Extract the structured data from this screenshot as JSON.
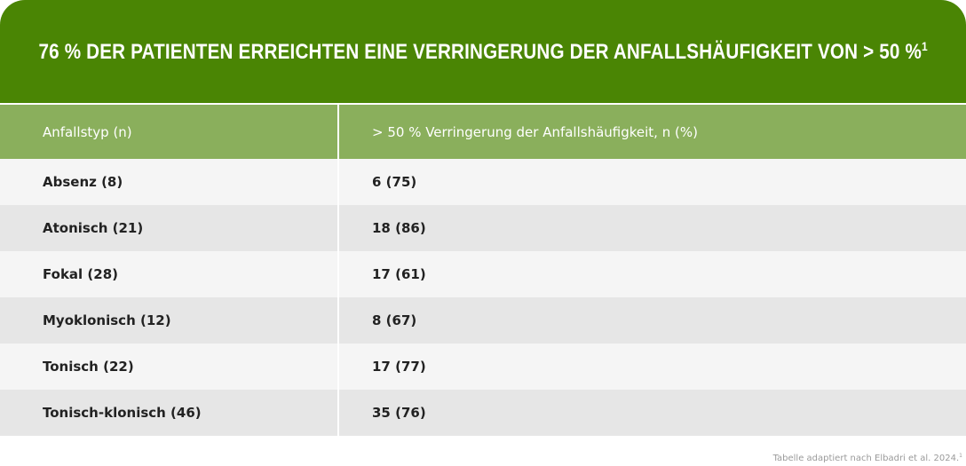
{
  "title": {
    "text": "76 % DER PATIENTEN ERREICHTEN EINE VERRINGERUNG DER ANFALLSHÄUFIGKEIT VON > 50 %",
    "footnote_mark": "1"
  },
  "table": {
    "headers": [
      "Anfallstyp (n)",
      "> 50 % Verringerung der Anfallshäufigkeit, n (%)"
    ],
    "rows": [
      [
        "Absenz (8)",
        "6 (75)"
      ],
      [
        "Atonisch (21)",
        "18 (86)"
      ],
      [
        "Fokal (28)",
        "17 (61)"
      ],
      [
        "Myoklonisch (12)",
        "8 (67)"
      ],
      [
        "Tonisch (22)",
        "17 (77)"
      ],
      [
        "Tonisch-klonisch (46)",
        "35 (76)"
      ]
    ]
  },
  "source": {
    "text": "Tabelle adaptiert nach Elbadri et al. 2024.",
    "footnote_mark": "1"
  },
  "colors": {
    "title_bg": "#4a8504",
    "header_bg": "#8aaf5c",
    "row_light": "#f5f5f5",
    "row_dark": "#e6e6e6"
  }
}
